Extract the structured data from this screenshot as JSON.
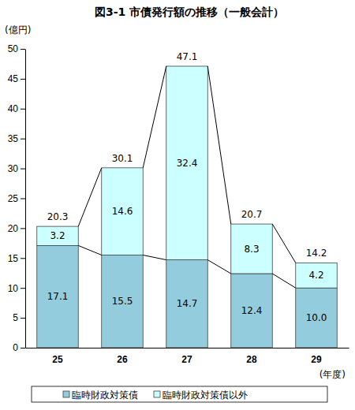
{
  "chart_data": {
    "type": "bar",
    "title": "図3-1 市債発行額の推移（一般会計）",
    "y_label": "(億円)",
    "x_label": "(年度)",
    "categories": [
      "25",
      "26",
      "27",
      "28",
      "29"
    ],
    "series": [
      {
        "name": "臨時財政対策債",
        "color": "#93cddd",
        "values": [
          17.1,
          15.5,
          14.7,
          12.4,
          10.0
        ],
        "value_labels": [
          "17.1",
          "15.5",
          "14.7",
          "12.4",
          "10.0"
        ]
      },
      {
        "name": "臨時財政対策債以外",
        "color": "#ccffff",
        "values": [
          3.2,
          14.6,
          32.4,
          8.3,
          4.2
        ]
      }
    ],
    "totals": [
      20.3,
      30.1,
      47.1,
      20.7,
      14.2
    ],
    "stacked": true,
    "data_labels": true,
    "grid": false,
    "legend": "bottom",
    "ylim": [
      0,
      50
    ],
    "yticks": [
      0,
      5,
      10,
      15,
      20,
      25,
      30,
      35,
      40,
      45,
      50
    ]
  }
}
